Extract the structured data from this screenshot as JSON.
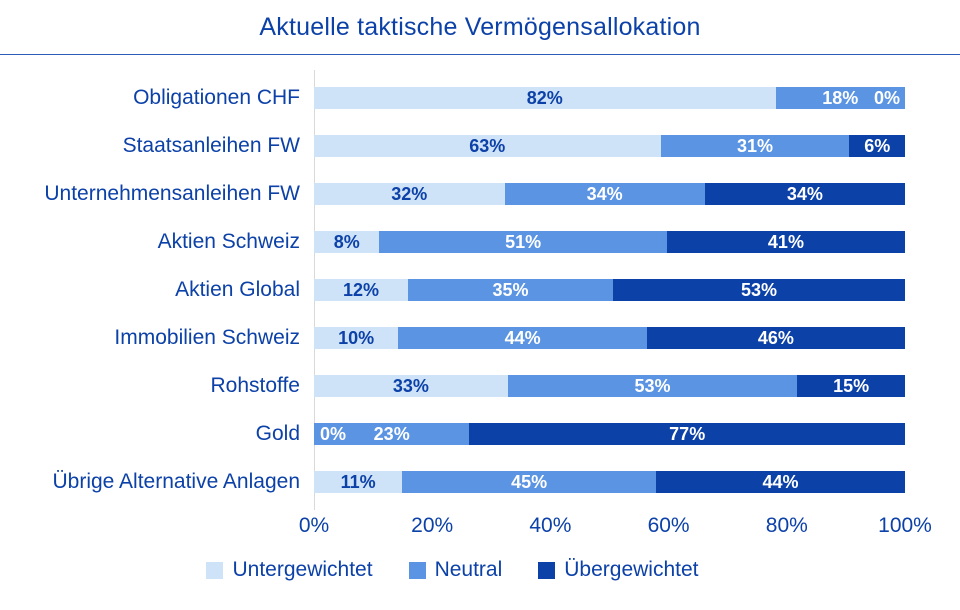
{
  "title": "Aktuelle taktische Vermögensallokation",
  "colors": {
    "text": "#0c41a8",
    "rule": "#2b5cb8",
    "underweight": "#cfe3f8",
    "neutral": "#5b94e2",
    "overweight": "#0c41a8",
    "label_on_light": "#0c41a8",
    "label_on_dark": "#ffffff"
  },
  "chart_data": {
    "type": "bar",
    "orientation": "horizontal",
    "stacked": true,
    "title": "Aktuelle taktische Vermögensallokation",
    "xlabel": "",
    "ylabel": "",
    "xlim": [
      0,
      100
    ],
    "x_ticks": [
      "0%",
      "20%",
      "40%",
      "60%",
      "80%",
      "100%"
    ],
    "legend_position": "bottom",
    "grid": false,
    "categories": [
      "Obligationen CHF",
      "Staatsanleihen FW",
      "Unternehmensanleihen FW",
      "Aktien Schweiz",
      "Aktien Global",
      "Immobilien Schweiz",
      "Rohstoffe",
      "Gold",
      "Übrige Alternative Anlagen"
    ],
    "series": [
      {
        "name": "Untergewichtet",
        "color": "#cfe3f8",
        "label_color": "#0c41a8",
        "values": [
          82,
          63,
          32,
          8,
          12,
          10,
          33,
          0,
          11
        ]
      },
      {
        "name": "Neutral",
        "color": "#5b94e2",
        "label_color": "#ffffff",
        "values": [
          18,
          31,
          34,
          51,
          35,
          44,
          53,
          23,
          45
        ]
      },
      {
        "name": "Übergewichtet",
        "color": "#0c41a8",
        "label_color": "#ffffff",
        "values": [
          0,
          6,
          34,
          41,
          53,
          46,
          15,
          77,
          44
        ]
      }
    ]
  }
}
